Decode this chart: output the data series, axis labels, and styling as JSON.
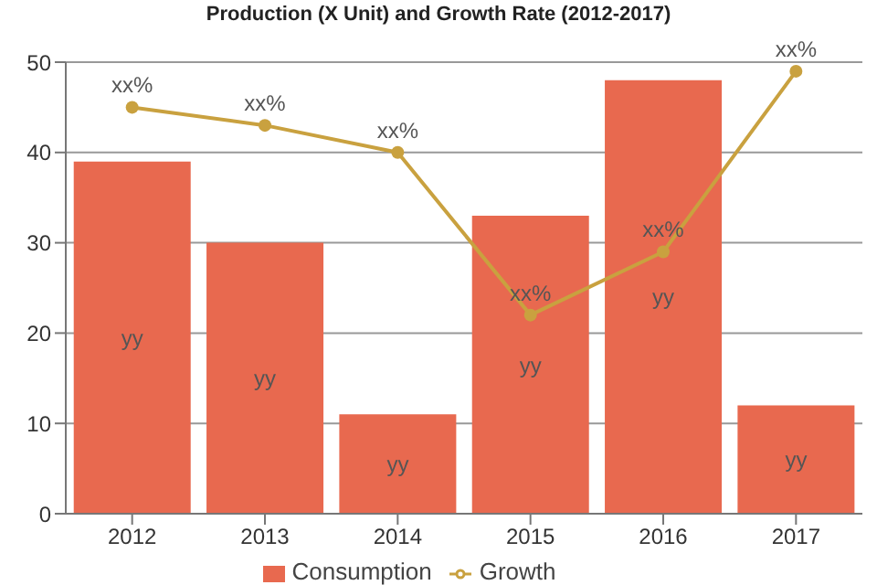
{
  "chart_data": {
    "type": "bar",
    "title": "Production (X Unit) and Growth Rate (2012-2017)",
    "categories": [
      "2012",
      "2013",
      "2014",
      "2015",
      "2016",
      "2017"
    ],
    "series": [
      {
        "name": "Consumption",
        "color": "#e8694f",
        "values": [
          39,
          30,
          11,
          33,
          48,
          12
        ],
        "value_labels": [
          "yy",
          "yy",
          "yy",
          "yy",
          "yy",
          "yy"
        ]
      },
      {
        "name": "Growth",
        "type": "line",
        "color": "#c9a13f",
        "values": [
          45,
          43,
          40,
          22,
          29,
          49
        ],
        "value_labels": [
          "xx%",
          "xx%",
          "xx%",
          "xx%",
          "xx%",
          "xx%"
        ]
      }
    ],
    "ylim": [
      0,
      50
    ],
    "yticks": [
      0,
      10,
      20,
      30,
      40,
      50
    ],
    "grid": "y",
    "legend": "bottom",
    "marker": "circle"
  }
}
